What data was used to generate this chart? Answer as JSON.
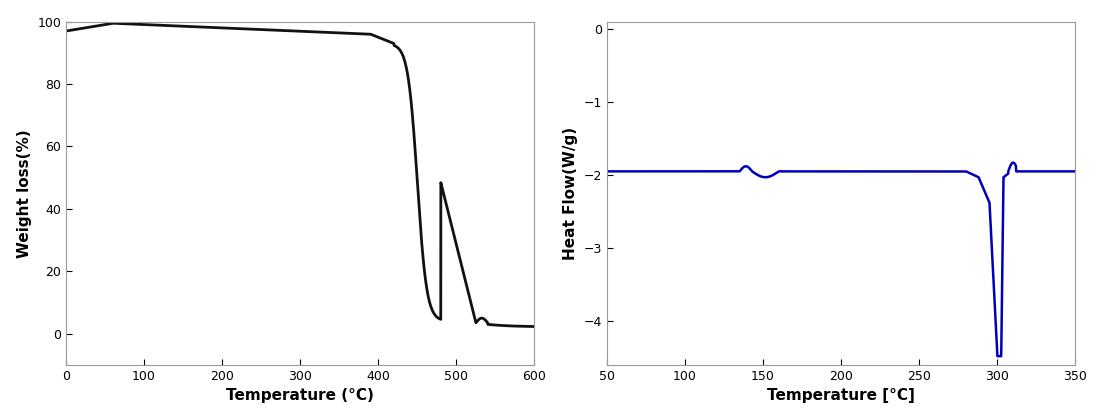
{
  "tga": {
    "xlim": [
      0,
      600
    ],
    "ylim": [
      -10,
      100
    ],
    "xlabel": "Temperature (°C)",
    "ylabel": "Weight loss(%)",
    "xticks": [
      0,
      100,
      200,
      300,
      400,
      500,
      600
    ],
    "yticks": [
      0,
      20,
      40,
      60,
      80,
      100
    ],
    "line_color": "#111111",
    "line_width": 2.0
  },
  "dsc": {
    "xlim": [
      50,
      350
    ],
    "ylim": [
      -4.6,
      0.1
    ],
    "xlabel": "Temperature [°C]",
    "ylabel": "Heat Flow(W/g)",
    "xticks": [
      50,
      100,
      150,
      200,
      250,
      300,
      350
    ],
    "yticks": [
      0,
      -1,
      -2,
      -3,
      -4
    ],
    "line_color": "#0000bb",
    "line_width": 1.8
  },
  "background_color": "#ffffff",
  "spine_color": "#999999",
  "tick_labelsize": 9,
  "label_fontsize": 11
}
